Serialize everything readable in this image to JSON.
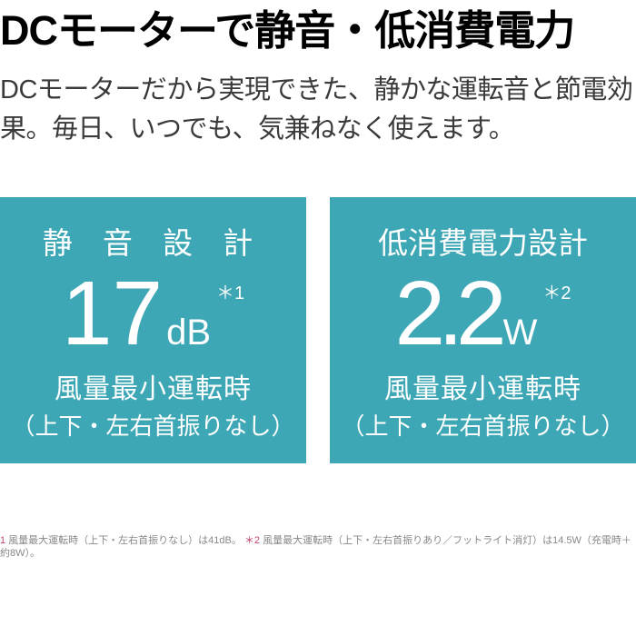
{
  "colors": {
    "card_bg": "#3da7b6",
    "card_text": "#ffffff",
    "headline": "#000000",
    "body_text": "#3a3a3a",
    "footnote_text": "#888888",
    "footnote_ref": "#c2466a",
    "page_bg": "#ffffff"
  },
  "headline": "DCモーターで静音・低消費電力",
  "description": "DCモーターだから実現できた、静かな運転音と節電効果。毎日、いつでも、気兼ねなく使えます。",
  "card_quiet": {
    "title": "静 音 設 計",
    "value": "17",
    "unit": "dB",
    "note": "＊1",
    "sub1": "風量最小運転時",
    "sub2": "（上下・左右首振りなし）"
  },
  "card_power": {
    "title": "低消費電力設計",
    "value": "2.2",
    "unit": "W",
    "note": "＊2",
    "sub1": "風量最小運転時",
    "sub2": "（上下・左右首振りなし）"
  },
  "footnote": {
    "ref1": "1",
    "text1": " 風量最大運転時（上下・左右首振りなし）は41dB。",
    "ref2": "＊2",
    "text2": " 風量最大運転時（上下・左右首振りあり／フットライト消灯）は14.5W（充電時＋約8W）。"
  }
}
